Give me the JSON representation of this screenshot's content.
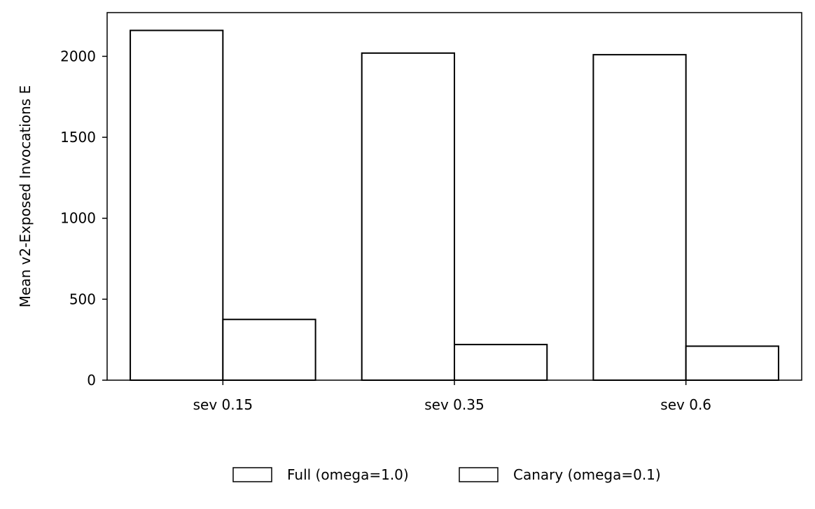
{
  "chart_data": {
    "type": "bar",
    "title": "",
    "xlabel": "",
    "ylabel": "Mean v2-Exposed Invocations E",
    "categories": [
      "sev 0.15",
      "sev 0.35",
      "sev 0.6"
    ],
    "series": [
      {
        "name": "Full (omega=1.0)",
        "values": [
          2160,
          2020,
          2010
        ],
        "fill": "#ffffff",
        "stroke": "#000000"
      },
      {
        "name": "Canary (omega=0.1)",
        "values": [
          375,
          220,
          210
        ],
        "fill": "#ffffff",
        "stroke": "#000000"
      }
    ],
    "ylim": [
      0,
      2270
    ],
    "yticks": [
      0,
      500,
      1000,
      1500,
      2000
    ],
    "grid": false,
    "legend_position": "bottom-center"
  }
}
